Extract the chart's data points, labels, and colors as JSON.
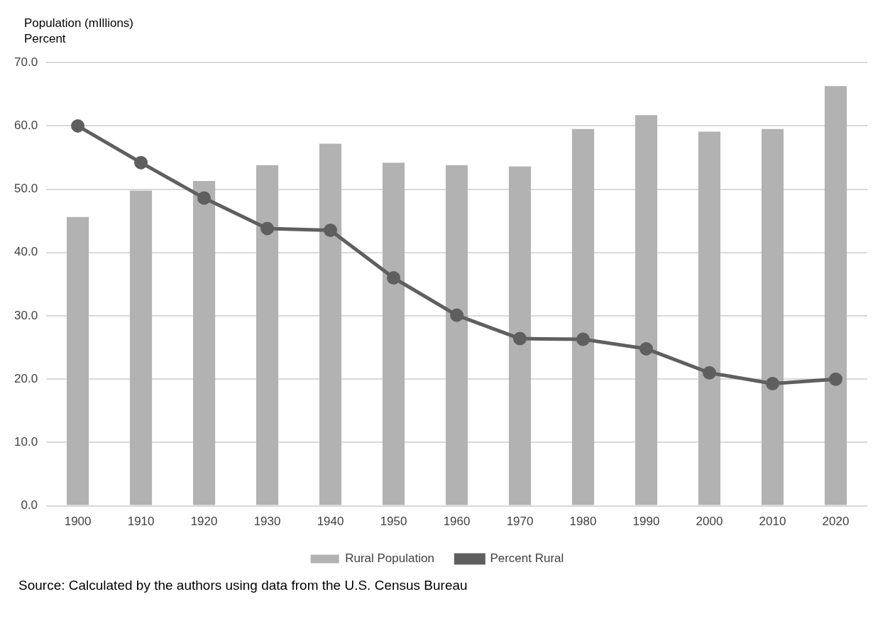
{
  "chart_data": {
    "type": "bar",
    "ylabel": "Population (mIllions)",
    "annotations": [
      "Percent",
      "Source: Calculated by the authors using data from the U.S. Census Bureau"
    ],
    "categories": [
      "1900",
      "1910",
      "1920",
      "1930",
      "1940",
      "1950",
      "1960",
      "1970",
      "1980",
      "1990",
      "2000",
      "2010",
      "2020"
    ],
    "series": [
      {
        "name": "Rural Population",
        "color": "#b2b2b2",
        "values": [
          45.6,
          49.8,
          51.3,
          53.8,
          57.2,
          54.2,
          53.8,
          53.6,
          59.5,
          61.7,
          59.1,
          59.5,
          66.3
        ]
      },
      {
        "name": "Percent Rural",
        "type": "line",
        "color": "#5f5f5f",
        "marker": "circle",
        "values": [
          60.0,
          54.2,
          48.6,
          43.8,
          43.5,
          36.0,
          30.1,
          26.4,
          26.3,
          24.8,
          21.0,
          19.3,
          20.0
        ]
      }
    ],
    "ylim": [
      0,
      70
    ],
    "yticks": [
      {
        "value": 0,
        "label": "0.0"
      },
      {
        "value": 10,
        "label": "10.0"
      },
      {
        "value": 20,
        "label": "20.0"
      },
      {
        "value": 30,
        "label": "30.0"
      },
      {
        "value": 40,
        "label": "40.0"
      },
      {
        "value": 50,
        "label": "50.0"
      },
      {
        "value": 60,
        "label": "60.0"
      },
      {
        "value": 70,
        "label": "70.0"
      }
    ],
    "grid": "y",
    "legend": "bottom"
  }
}
